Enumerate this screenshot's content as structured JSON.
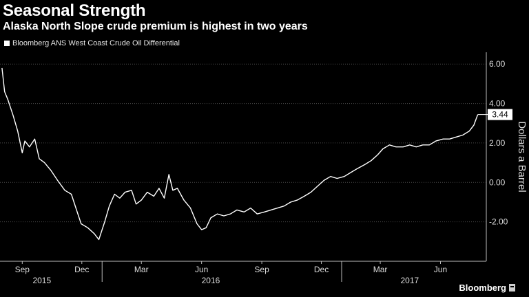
{
  "title": "Seasonal Strength",
  "subtitle": "Alaska North Slope crude premium is highest in two years",
  "brand": "Bloomberg",
  "colors": {
    "background": "#000000",
    "line": "#ffffff",
    "grid": "#4a4a4a",
    "text": "#dcdcdc"
  },
  "chart_data": {
    "type": "line",
    "series": [
      {
        "name": "Bloomberg ANS West Coast Crude Oil Differential",
        "points": [
          [
            "2015-08-01",
            5.8
          ],
          [
            "2015-08-05",
            4.6
          ],
          [
            "2015-08-10",
            4.2
          ],
          [
            "2015-08-18",
            3.4
          ],
          [
            "2015-08-25",
            2.6
          ],
          [
            "2015-09-01",
            1.5
          ],
          [
            "2015-09-05",
            2.1
          ],
          [
            "2015-09-12",
            1.8
          ],
          [
            "2015-09-20",
            2.2
          ],
          [
            "2015-09-27",
            1.2
          ],
          [
            "2015-10-05",
            1.0
          ],
          [
            "2015-10-15",
            0.6
          ],
          [
            "2015-10-25",
            0.1
          ],
          [
            "2015-11-05",
            -0.4
          ],
          [
            "2015-11-15",
            -0.6
          ],
          [
            "2015-11-22",
            -1.3
          ],
          [
            "2015-11-30",
            -2.1
          ],
          [
            "2015-12-10",
            -2.3
          ],
          [
            "2015-12-20",
            -2.6
          ],
          [
            "2015-12-27",
            -2.9
          ],
          [
            "2016-01-05",
            -2.0
          ],
          [
            "2016-01-12",
            -1.2
          ],
          [
            "2016-01-20",
            -0.6
          ],
          [
            "2016-01-28",
            -0.8
          ],
          [
            "2016-02-05",
            -0.5
          ],
          [
            "2016-02-15",
            -0.4
          ],
          [
            "2016-02-22",
            -1.1
          ],
          [
            "2016-03-01",
            -0.9
          ],
          [
            "2016-03-10",
            -0.5
          ],
          [
            "2016-03-20",
            -0.7
          ],
          [
            "2016-03-28",
            -0.3
          ],
          [
            "2016-04-05",
            -0.8
          ],
          [
            "2016-04-12",
            0.4
          ],
          [
            "2016-04-18",
            -0.4
          ],
          [
            "2016-04-25",
            -0.3
          ],
          [
            "2016-05-05",
            -0.9
          ],
          [
            "2016-05-15",
            -1.3
          ],
          [
            "2016-05-25",
            -2.1
          ],
          [
            "2016-06-01",
            -2.4
          ],
          [
            "2016-06-08",
            -2.3
          ],
          [
            "2016-06-15",
            -1.8
          ],
          [
            "2016-06-25",
            -1.6
          ],
          [
            "2016-07-05",
            -1.7
          ],
          [
            "2016-07-15",
            -1.6
          ],
          [
            "2016-07-25",
            -1.4
          ],
          [
            "2016-08-05",
            -1.5
          ],
          [
            "2016-08-15",
            -1.3
          ],
          [
            "2016-08-25",
            -1.6
          ],
          [
            "2016-09-05",
            -1.5
          ],
          [
            "2016-09-15",
            -1.4
          ],
          [
            "2016-09-25",
            -1.3
          ],
          [
            "2016-10-05",
            -1.2
          ],
          [
            "2016-10-15",
            -1.0
          ],
          [
            "2016-10-25",
            -0.9
          ],
          [
            "2016-11-05",
            -0.7
          ],
          [
            "2016-11-15",
            -0.5
          ],
          [
            "2016-11-25",
            -0.2
          ],
          [
            "2016-12-05",
            0.1
          ],
          [
            "2016-12-15",
            0.3
          ],
          [
            "2016-12-25",
            0.2
          ],
          [
            "2017-01-05",
            0.3
          ],
          [
            "2017-01-15",
            0.5
          ],
          [
            "2017-01-25",
            0.7
          ],
          [
            "2017-02-05",
            0.9
          ],
          [
            "2017-02-15",
            1.1
          ],
          [
            "2017-02-25",
            1.4
          ],
          [
            "2017-03-05",
            1.7
          ],
          [
            "2017-03-15",
            1.9
          ],
          [
            "2017-03-25",
            1.8
          ],
          [
            "2017-04-05",
            1.8
          ],
          [
            "2017-04-15",
            1.9
          ],
          [
            "2017-04-25",
            1.8
          ],
          [
            "2017-05-05",
            1.9
          ],
          [
            "2017-05-15",
            1.9
          ],
          [
            "2017-05-25",
            2.1
          ],
          [
            "2017-06-05",
            2.2
          ],
          [
            "2017-06-15",
            2.2
          ],
          [
            "2017-06-25",
            2.3
          ],
          [
            "2017-07-05",
            2.4
          ],
          [
            "2017-07-15",
            2.6
          ],
          [
            "2017-07-22",
            2.9
          ],
          [
            "2017-07-28",
            3.44
          ]
        ]
      }
    ],
    "last_value_label": "3.44",
    "xlim": [
      "2015-07-29",
      "2017-08-10"
    ],
    "ylim": [
      -4.0,
      6.6
    ],
    "y_ticks": [
      -2,
      0,
      2,
      4,
      6
    ],
    "y_tick_labels": [
      "-2.00",
      "0.00",
      "2.00",
      "4.00",
      "6.00"
    ],
    "ylabel": "Dollars a Barrel",
    "x_ticks": [
      {
        "date": "2015-09-01",
        "label": "Sep"
      },
      {
        "date": "2015-12-01",
        "label": "Dec"
      },
      {
        "date": "2016-03-01",
        "label": "Mar"
      },
      {
        "date": "2016-06-01",
        "label": "Jun"
      },
      {
        "date": "2016-09-01",
        "label": "Sep"
      },
      {
        "date": "2016-12-01",
        "label": "Dec"
      },
      {
        "date": "2017-03-01",
        "label": "Mar"
      },
      {
        "date": "2017-06-01",
        "label": "Jun"
      }
    ],
    "year_labels": [
      {
        "date": "2015-10-01",
        "label": "2015"
      },
      {
        "date": "2016-06-15",
        "label": "2016"
      },
      {
        "date": "2017-04-15",
        "label": "2017"
      }
    ],
    "year_boundaries": [
      "2016-01-01",
      "2017-01-01"
    ],
    "grid": true,
    "legend_position": "top-left"
  }
}
